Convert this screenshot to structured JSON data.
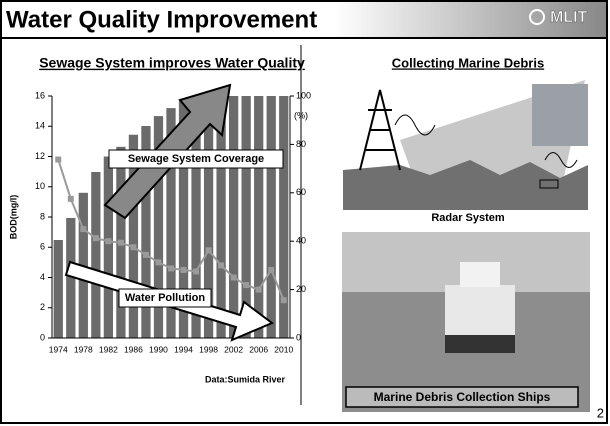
{
  "slide": {
    "title": "Water Quality Improvement",
    "logo": "MLIT",
    "page_number": "2",
    "right_title": "Collecting Marine Debris",
    "radar_caption": "Radar System",
    "ship_caption": "Marine Debris Collection Ships"
  },
  "chart_data": {
    "type": "bar-line",
    "title": "Sewage System improves Water Quality",
    "source": "Data:Sumida River",
    "ylabel": "BOD(mg/l)",
    "y2unit": "(%)",
    "categories": [
      "1974",
      null,
      "1978",
      null,
      "1982",
      null,
      "1986",
      null,
      "1990",
      null,
      "1994",
      null,
      "1998",
      null,
      "2002",
      null,
      "2006",
      null,
      "2010"
    ],
    "series": [
      {
        "name": "Sewage System Coverage",
        "type": "bar",
        "axis": "y2",
        "color": "#6b6b6b",
        "values": [
          40.5,
          49.6,
          60,
          68.6,
          75,
          79,
          84,
          87.6,
          91.7,
          95,
          98,
          100,
          100,
          100,
          100,
          100,
          100,
          100,
          100
        ]
      },
      {
        "name": "Water Pollution",
        "type": "line",
        "axis": "y",
        "color": "#9a9a9a",
        "values": [
          11.8,
          9.2,
          7.2,
          6.6,
          6.4,
          6.3,
          6.0,
          5.5,
          5.0,
          4.6,
          4.5,
          4.4,
          5.8,
          4.8,
          4.0,
          3.5,
          3.2,
          4.5,
          2.5
        ]
      }
    ],
    "ylim": [
      0,
      16
    ],
    "yticks": [
      0,
      2,
      4,
      6,
      8,
      10,
      12,
      14,
      16
    ],
    "y2lim": [
      0,
      100
    ],
    "y2ticks": [
      0,
      20,
      40,
      60,
      80,
      100
    ]
  }
}
